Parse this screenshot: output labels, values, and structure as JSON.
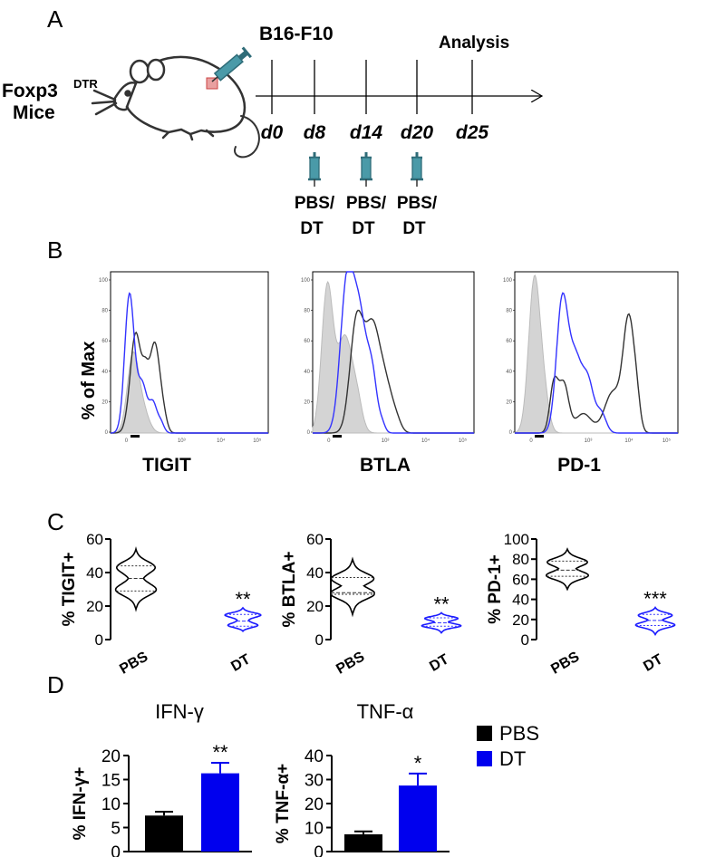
{
  "panels": {
    "A": {
      "letter": "A",
      "mouse_label_line1": "Foxp3",
      "mouse_label_sup": "DTR",
      "mouse_label_line2": "Mice",
      "tumor_label": "B16-F10",
      "analysis_label": "Analysis",
      "days": [
        "d0",
        "d8",
        "d14",
        "d20",
        "d25"
      ],
      "injections": [
        {
          "line1": "PBS/",
          "line2": "DT"
        },
        {
          "line1": "PBS/",
          "line2": "DT"
        },
        {
          "line1": "PBS/",
          "line2": "DT"
        }
      ]
    },
    "B": {
      "letter": "B",
      "ylabel": "% of Max",
      "markers": [
        "TIGIT",
        "BTLA",
        "PD-1"
      ],
      "yticks": [
        "0",
        "20",
        "40",
        "60",
        "80",
        "100"
      ],
      "xticks": [
        "0",
        "10³",
        "10⁴",
        "10⁵"
      ]
    },
    "C": {
      "letter": "C",
      "significance": [
        "**",
        "**",
        "***"
      ]
    },
    "D": {
      "letter": "D",
      "legend": [
        {
          "label": "PBS",
          "color": "#000000"
        },
        {
          "label": "DT",
          "color": "#0000ee"
        }
      ],
      "significance": [
        "**",
        "*"
      ]
    }
  },
  "chart_data": [
    {
      "type": "violin",
      "panel": "C",
      "ylabel": "% TIGIT+",
      "categories": [
        "PBS",
        "DT"
      ],
      "yticks": [
        0,
        20,
        40,
        60
      ],
      "ylim": [
        0,
        60
      ],
      "series": [
        {
          "name": "PBS",
          "color": "#000000",
          "min": 18,
          "max": 54,
          "median": 36.5,
          "q1": 29,
          "q3": 44
        },
        {
          "name": "DT",
          "color": "#1a1aff",
          "min": 5,
          "max": 19,
          "median": 11,
          "q1": 8,
          "q3": 15
        }
      ]
    },
    {
      "type": "violin",
      "panel": "C",
      "ylabel": "% BTLA+",
      "categories": [
        "PBS",
        "DT"
      ],
      "yticks": [
        0,
        20,
        40,
        60
      ],
      "ylim": [
        0,
        60
      ],
      "series": [
        {
          "name": "PBS",
          "color": "#000000",
          "min": 15,
          "max": 48,
          "median": 28,
          "q1": 27,
          "q3": 37
        },
        {
          "name": "DT",
          "color": "#1a1aff",
          "min": 4,
          "max": 16,
          "median": 10,
          "q1": 8,
          "q3": 13
        }
      ]
    },
    {
      "type": "violin",
      "panel": "C",
      "ylabel": "% PD-1+",
      "categories": [
        "PBS",
        "DT"
      ],
      "yticks": [
        0,
        20,
        40,
        60,
        80,
        100
      ],
      "ylim": [
        0,
        100
      ],
      "series": [
        {
          "name": "PBS",
          "color": "#000000",
          "min": 50,
          "max": 90,
          "median": 69,
          "q1": 63,
          "q3": 78
        },
        {
          "name": "DT",
          "color": "#1a1aff",
          "min": 5,
          "max": 32,
          "median": 19,
          "q1": 14,
          "q3": 25
        }
      ]
    },
    {
      "type": "bar",
      "panel": "D",
      "title": "IFN-γ",
      "ylabel": "% IFN-γ+",
      "categories": [
        "PBS",
        "DT"
      ],
      "yticks": [
        0,
        5,
        10,
        15,
        20
      ],
      "ylim": [
        0,
        20
      ],
      "values": [
        7.5,
        16.3
      ],
      "errors": [
        0.8,
        2.2
      ],
      "colors": [
        "#000000",
        "#0000ee"
      ]
    },
    {
      "type": "bar",
      "panel": "D",
      "title": "TNF-α",
      "ylabel": "% TNF-α+",
      "categories": [
        "PBS",
        "DT"
      ],
      "yticks": [
        0,
        10,
        20,
        30,
        40
      ],
      "ylim": [
        0,
        40
      ],
      "values": [
        7.2,
        27.5
      ],
      "errors": [
        1.2,
        5.0
      ],
      "colors": [
        "#000000",
        "#0000ee"
      ]
    }
  ]
}
